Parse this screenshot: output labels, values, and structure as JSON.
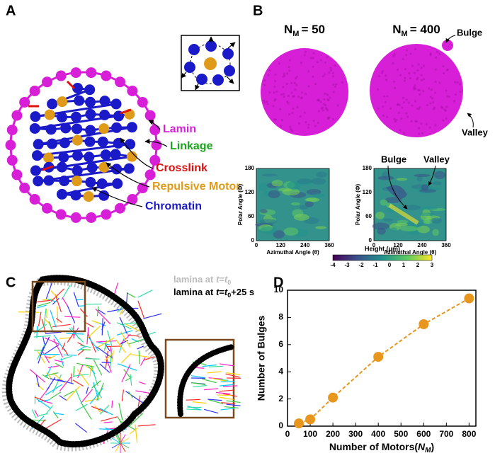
{
  "panel_a": {
    "letter": "A",
    "labels": [
      {
        "text": "Lamin",
        "color": "#d81fd8"
      },
      {
        "text": "Linkage",
        "color": "#1aa51a"
      },
      {
        "text": "Crosslink",
        "color": "#e01010"
      },
      {
        "text": "Repulsive Motor",
        "color": "#e09a1a"
      },
      {
        "text": "Chromatin",
        "color": "#1a1ac8"
      }
    ]
  },
  "panel_b": {
    "letter": "B",
    "sphere_titles": [
      {
        "n": "N",
        "sub": "M",
        "rest": "= 50"
      },
      {
        "n": "N",
        "sub": "M",
        "rest": "= 400"
      }
    ],
    "sphere_notes": [
      "Bulge",
      "Valley"
    ],
    "map_notes": [
      "Bulge",
      "Valley"
    ],
    "y_label": "Polar Angle (Φ)",
    "x_label": "Azimuthal Angle (θ)",
    "yticks": [
      0,
      60,
      120,
      180
    ],
    "xticks": [
      0,
      120,
      240,
      360
    ],
    "colorbar_label": "Height (μm)",
    "colorbar_ticks": [
      -4,
      -3,
      -2,
      -1,
      0,
      1,
      2,
      3
    ]
  },
  "panel_c": {
    "letter": "C",
    "legend": [
      {
        "color": "#bbbbbb",
        "tokens": [
          {
            "text": "lamina at "
          },
          {
            "text": "t",
            "style": "italic"
          },
          {
            "text": "="
          },
          {
            "text": "t",
            "style": "italic"
          },
          {
            "text": "0",
            "style": "sub"
          }
        ]
      },
      {
        "color": "#000000",
        "tokens": [
          {
            "text": "lamina at "
          },
          {
            "text": "t",
            "style": "italic"
          },
          {
            "text": "="
          },
          {
            "text": "t",
            "style": "italic"
          },
          {
            "text": "0",
            "style": "sub"
          },
          {
            "text": "+25 s"
          }
        ]
      }
    ]
  },
  "panel_d": {
    "letter": "D"
  },
  "chart_data": {
    "type": "line",
    "y_label": "Number of Bulges",
    "x_label": {
      "text": "Number of Motors(",
      "var": "N",
      "sub": "M",
      "end": ")"
    },
    "x": [
      50,
      100,
      200,
      400,
      600,
      800
    ],
    "values": [
      0.2,
      0.5,
      2.1,
      5.1,
      7.5,
      9.4
    ],
    "color": "#e8961e",
    "xlim": [
      0,
      830
    ],
    "ylim": [
      0,
      10
    ],
    "xticks": [
      0,
      100,
      200,
      300,
      400,
      500,
      600,
      700,
      800
    ],
    "yticks": [
      0,
      2,
      4,
      6,
      8,
      10
    ]
  }
}
